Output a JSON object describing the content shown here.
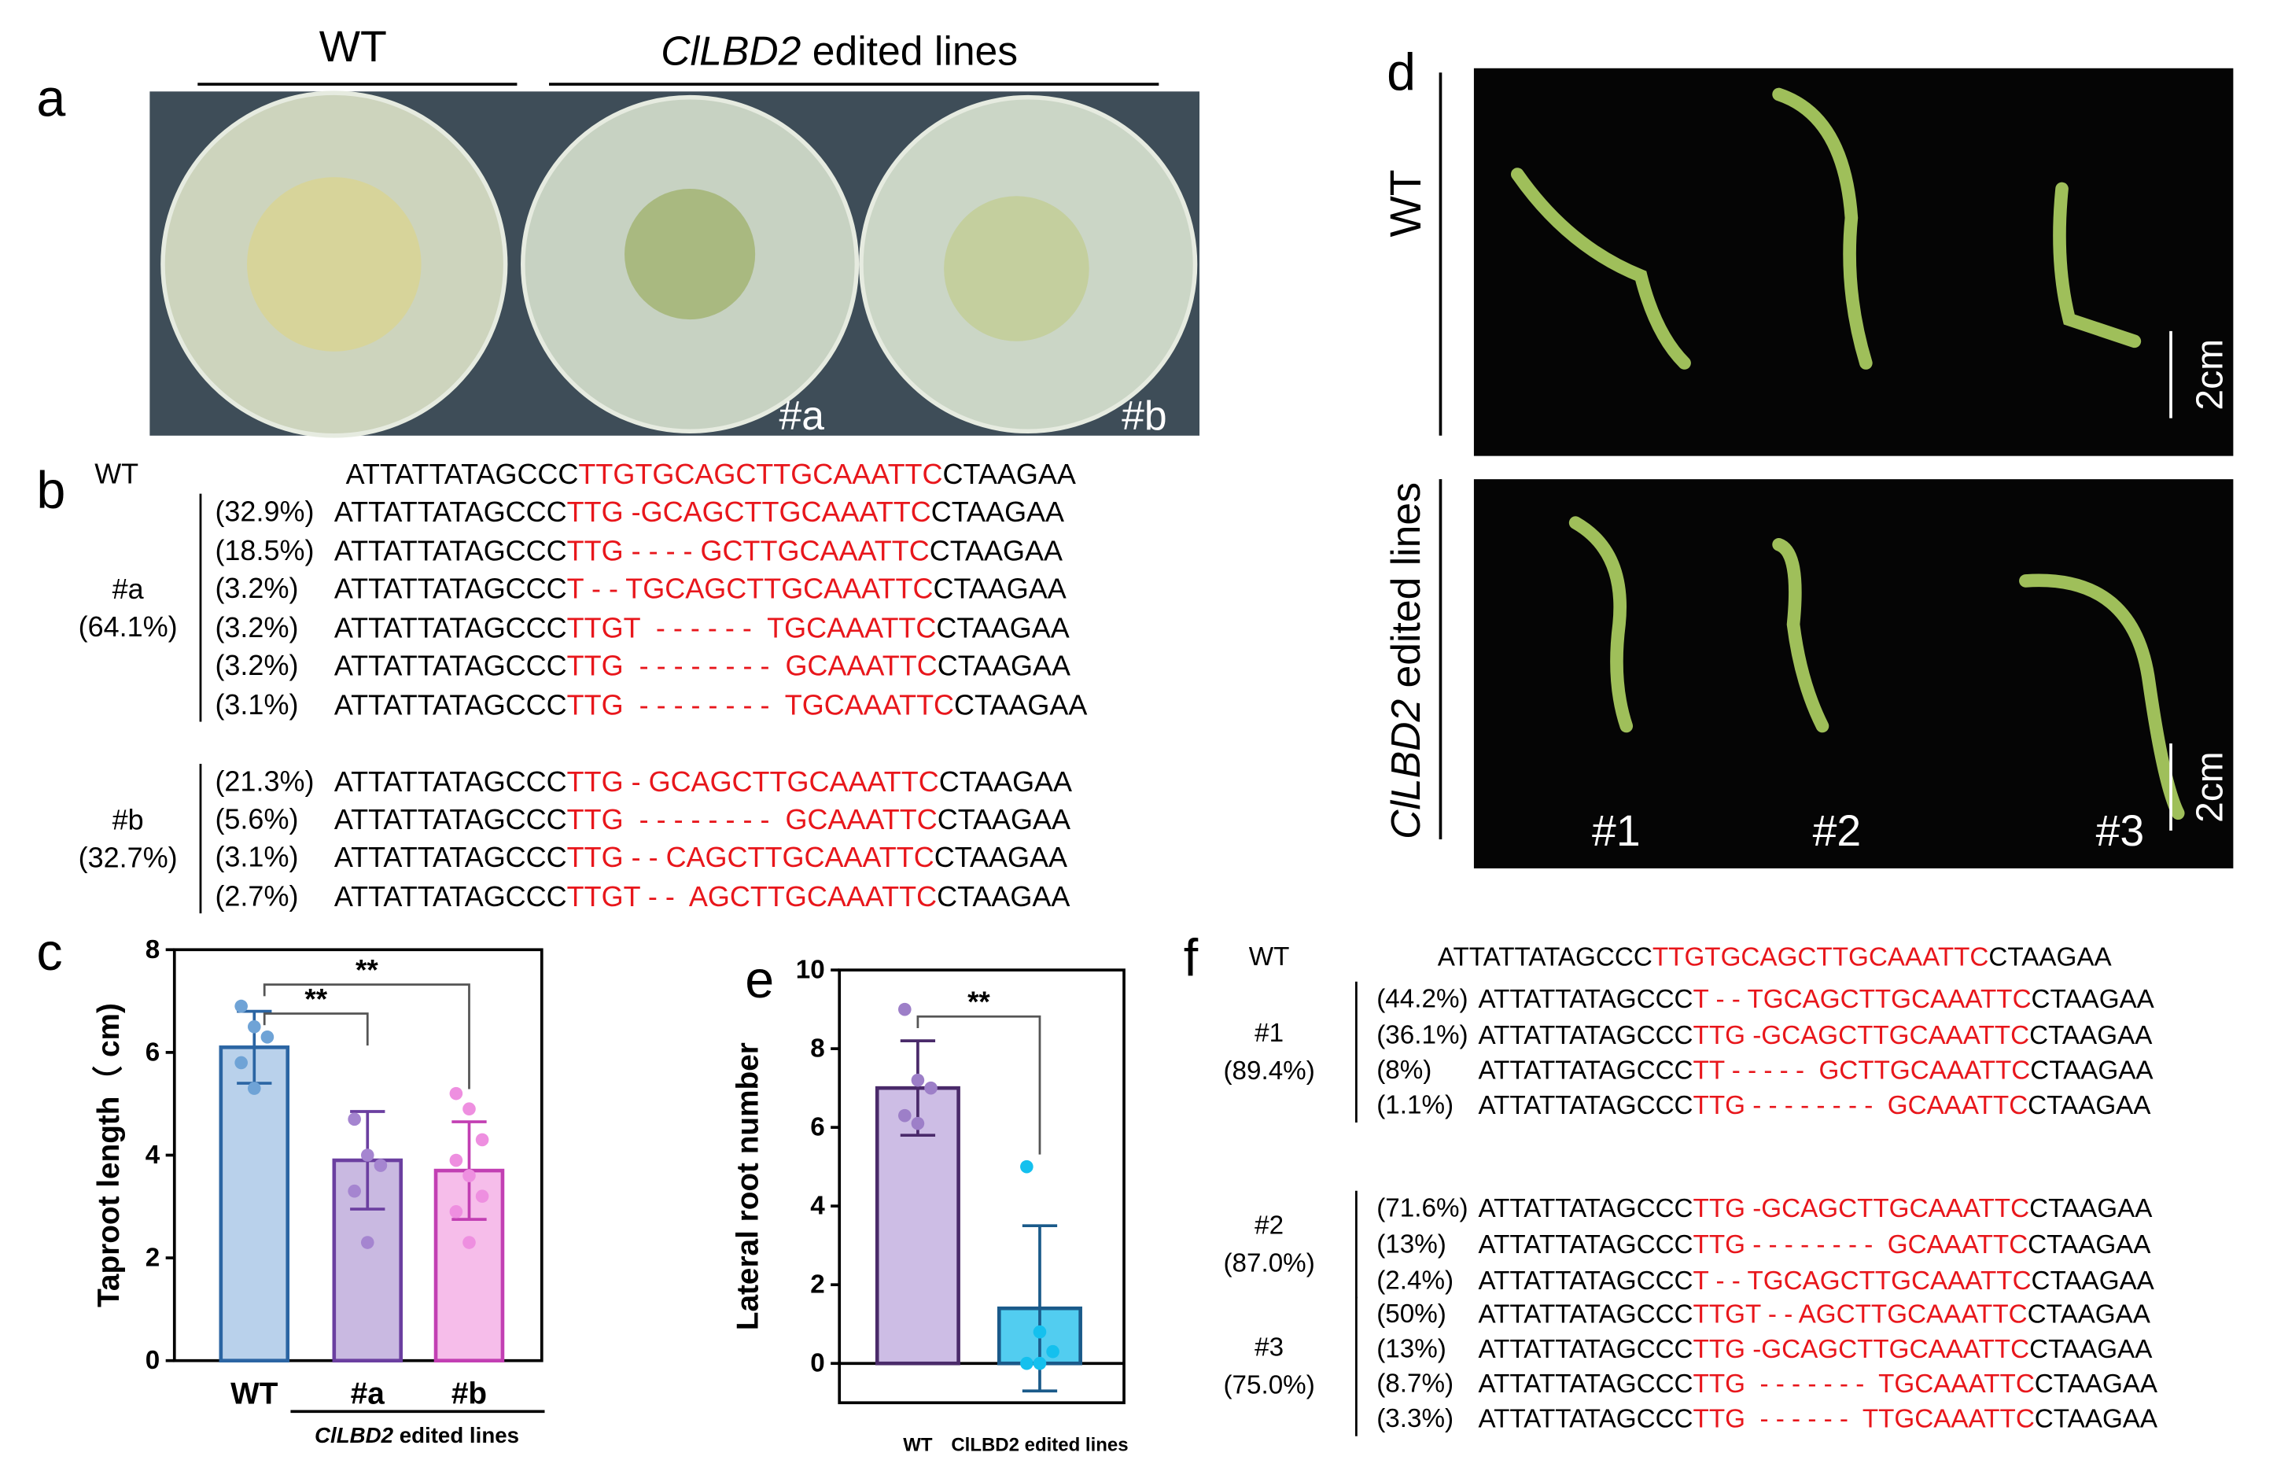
{
  "panel_labels": [
    "a",
    "b",
    "c",
    "d",
    "e",
    "f"
  ],
  "panel_a": {
    "wt_label": "WT",
    "edited_gene": "ClLBD2",
    "edited_text": " edited lines",
    "plates": [
      "#a",
      "#b"
    ]
  },
  "panel_b": {
    "wt": {
      "label": "WT",
      "seq": [
        "ATTATTATAGCCC",
        "TTGTGCAGCTTGCAAATTC",
        "CTAAGAA"
      ]
    },
    "groups": [
      {
        "label": "#a",
        "total": "(64.1%)",
        "rows": [
          {
            "pct": "(32.9%)",
            "seq": [
              "ATTATTATAGCCC",
              "TTG -GCAGCTTGCAAATTC",
              "CTAAGAA"
            ]
          },
          {
            "pct": "(18.5%)",
            "seq": [
              "ATTATTATAGCCC",
              "TTG - - - - GCTTGCAAATTC",
              "CTAAGAA"
            ]
          },
          {
            "pct": "(3.2%)",
            "seq": [
              "ATTATTATAGCCC",
              "T - - TGCAGCTTGCAAATTC",
              "CTAAGAA"
            ]
          },
          {
            "pct": "(3.2%)",
            "seq": [
              "ATTATTATAGCCC",
              "TTGT  - - - - - -  TGCAAATTC",
              "CTAAGAA"
            ]
          },
          {
            "pct": "(3.2%)",
            "seq": [
              "ATTATTATAGCCC",
              "TTG  - - - - - - - -  GCAAATTC",
              "CTAAGAA"
            ]
          },
          {
            "pct": "(3.1%)",
            "seq": [
              "ATTATTATAGCCC",
              "TTG  - - - - - - - -  TGCAAATTC",
              "CTAAGAA"
            ]
          }
        ]
      },
      {
        "label": "#b",
        "total": "(32.7%)",
        "rows": [
          {
            "pct": "(21.3%)",
            "seq": [
              "ATTATTATAGCCC",
              "TTG - GCAGCTTGCAAATTC",
              "CTAAGAA"
            ]
          },
          {
            "pct": "(5.6%)",
            "seq": [
              "ATTATTATAGCCC",
              "TTG  - - - - - - - -  GCAAATTC",
              "CTAAGAA"
            ]
          },
          {
            "pct": "(3.1%)",
            "seq": [
              "ATTATTATAGCCC",
              "TTG - - CAGCTTGCAAATTC",
              "CTAAGAA"
            ]
          },
          {
            "pct": "(2.7%)",
            "seq": [
              "ATTATTATAGCCC",
              "TTGT - -  AGCTTGCAAATTC",
              "CTAAGAA"
            ]
          }
        ]
      }
    ]
  },
  "chart_data": [
    {
      "type": "bar",
      "y_label": "Taproot length（ cm)",
      "categories": [
        "WT",
        "#a",
        "#b"
      ],
      "group_label": {
        "gene": "ClLBD2",
        "text": " edited lines"
      },
      "values": [
        6.1,
        3.9,
        3.7
      ],
      "errors": [
        0.7,
        0.95,
        0.95
      ],
      "points": [
        [
          6.9,
          6.5,
          6.3,
          5.8,
          5.3
        ],
        [
          4.7,
          4.0,
          3.8,
          3.3,
          2.3
        ],
        [
          5.2,
          4.9,
          4.3,
          3.9,
          3.6,
          3.2,
          2.9,
          2.3
        ]
      ],
      "colors": [
        "#b9d1eb",
        "#c9b9e1",
        "#f6bdea"
      ],
      "edge_colors": [
        "#2b65a3",
        "#6b3fa0",
        "#c23fb3"
      ],
      "point_colors": [
        "#6fa3d6",
        "#a585d0",
        "#ee8fe0"
      ],
      "ylim": [
        0,
        8
      ],
      "yticks": [
        0,
        2,
        4,
        6,
        8
      ],
      "annotations": [
        "**",
        "**"
      ]
    },
    {
      "type": "bar",
      "y_label": "Lateral root number",
      "categories": [
        "WT",
        "ClLBD2 edited lines"
      ],
      "values": [
        7.0,
        1.4
      ],
      "errors": [
        1.2,
        2.1
      ],
      "points": [
        [
          9,
          7.2,
          7.0,
          6.3,
          6.1
        ],
        [
          5,
          0.8,
          0.3,
          0,
          0
        ]
      ],
      "colors": [
        "#cdbde5",
        "#52cdf0"
      ],
      "edge_colors": [
        "#4a2a6a",
        "#1a5a8a"
      ],
      "point_colors": [
        "#9d7fc8",
        "#14c0ee"
      ],
      "ylim": [
        -1,
        10
      ],
      "yticks": [
        0,
        2,
        4,
        6,
        8,
        10
      ],
      "annotations": [
        "**"
      ]
    }
  ],
  "panel_d": {
    "wt_label": "WT",
    "edited_gene": "ClLBD2",
    "edited_text": " edited lines",
    "plants": [
      "#1",
      "#2",
      "#3"
    ],
    "scale_bar": "2cm"
  },
  "panel_f": {
    "wt": {
      "label": "WT",
      "seq": [
        "ATTATTATAGCCC",
        "TTGTGCAGCTTGCAAATTC",
        "CTAAGAA"
      ]
    },
    "groups": [
      {
        "label": "#1",
        "total": "(89.4%)",
        "rows": [
          {
            "pct": "(44.2%)",
            "seq": [
              "ATTATTATAGCCC",
              "T - - TGCAGCTTGCAAATTC",
              "CTAAGAA"
            ]
          },
          {
            "pct": "(36.1%)",
            "seq": [
              "ATTATTATAGCCC",
              "TTG -GCAGCTTGCAAATTC",
              "CTAAGAA"
            ]
          },
          {
            "pct": "(8%)",
            "seq": [
              "ATTATTATAGCCC",
              "TT - - - - -  GCTTGCAAATTC",
              "CTAAGAA"
            ]
          },
          {
            "pct": "(1.1%)",
            "seq": [
              "ATTATTATAGCCC",
              "TTG - - - - - - - -  GCAAATTC",
              "CTAAGAA"
            ]
          }
        ]
      },
      {
        "label": "#2",
        "total": "(87.0%)",
        "rows": [
          {
            "pct": "(71.6%)",
            "seq": [
              "ATTATTATAGCCC",
              "TTG -GCAGCTTGCAAATTC",
              "CTAAGAA"
            ]
          },
          {
            "pct": "(13%)",
            "seq": [
              "ATTATTATAGCCC",
              "TTG - - - - - - - -  GCAAATTC",
              "CTAAGAA"
            ]
          },
          {
            "pct": "(2.4%)",
            "seq": [
              "ATTATTATAGCCC",
              "T - - TGCAGCTTGCAAATTC",
              "CTAAGAA"
            ]
          }
        ]
      },
      {
        "label": "#3",
        "total": "(75.0%)",
        "rows": [
          {
            "pct": "(50%)",
            "seq": [
              "ATTATTATAGCCC",
              "TTGT - - AGCTTGCAAATTC",
              "CTAAGAA"
            ]
          },
          {
            "pct": "(13%)",
            "seq": [
              "ATTATTATAGCCC",
              "TTG -GCAGCTTGCAAATTC",
              "CTAAGAA"
            ]
          },
          {
            "pct": "(8.7%)",
            "seq": [
              "ATTATTATAGCCC",
              "TTG  - - - - - - -  TGCAAATTC",
              "CTAAGAA"
            ]
          },
          {
            "pct": "(3.3%)",
            "seq": [
              "ATTATTATAGCCC",
              "TTG  - - - - - -  TTGCAAATTC",
              "CTAAGAA"
            ]
          }
        ]
      }
    ]
  }
}
